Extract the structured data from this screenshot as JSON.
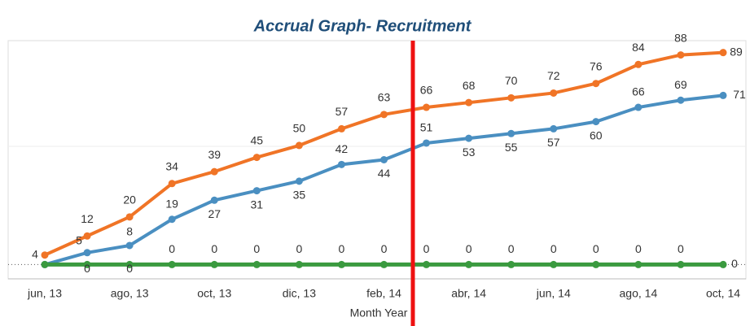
{
  "chart_data": {
    "type": "line",
    "title": "Accrual Graph- Recruitment",
    "x_label": "Month Year",
    "categories": [
      "jun, 13",
      null,
      "ago, 13",
      null,
      "oct, 13",
      null,
      "dic, 13",
      null,
      "feb, 14",
      null,
      "abr, 14",
      null,
      "jun, 14",
      null,
      "ago, 14",
      null,
      "oct, 14"
    ],
    "series": [
      {
        "name": "Orange",
        "color": "#f07426",
        "values": [
          4,
          12,
          20,
          34,
          39,
          45,
          50,
          57,
          63,
          66,
          68,
          70,
          72,
          76,
          84,
          88,
          89
        ]
      },
      {
        "name": "Blue",
        "color": "#4a8fc1",
        "values": [
          0,
          5,
          8,
          19,
          27,
          31,
          35,
          42,
          44,
          51,
          53,
          55,
          57,
          60,
          66,
          69,
          71
        ]
      },
      {
        "name": "Green",
        "color": "#3a9a3f",
        "values": [
          0,
          0,
          0,
          0,
          0,
          0,
          0,
          0,
          0,
          0,
          0,
          0,
          0,
          0,
          0,
          0,
          0
        ]
      }
    ],
    "ylim": [
      -6,
      94
    ]
  }
}
